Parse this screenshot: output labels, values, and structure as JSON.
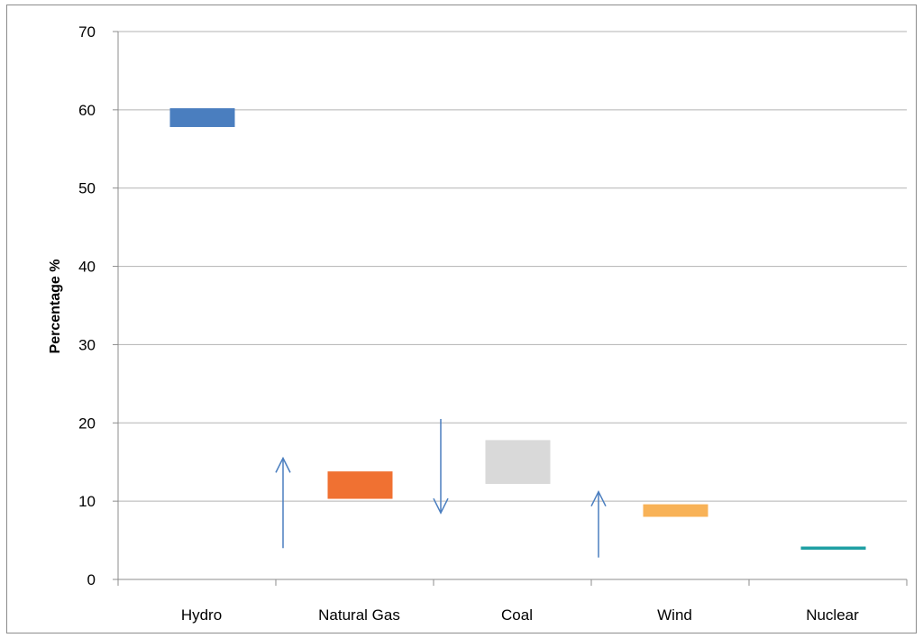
{
  "chart_data": {
    "type": "floating-bar",
    "title": "",
    "xlabel": "",
    "ylabel": "Percentage %",
    "ylim": [
      0,
      70
    ],
    "yticks": [
      "0",
      "10",
      "20",
      "30",
      "40",
      "50",
      "60",
      "70"
    ],
    "grid": true,
    "legend": "none",
    "categories": [
      "Hydro",
      "Natural Gas",
      "Coal",
      "Wind",
      "Nuclear"
    ],
    "ranges": [
      {
        "category": "Hydro",
        "low": 57.8,
        "high": 60.2,
        "color": "#4a7ebf"
      },
      {
        "category": "Natural Gas",
        "low": 10.3,
        "high": 13.8,
        "color": "#f07132"
      },
      {
        "category": "Coal",
        "low": 12.2,
        "high": 17.8,
        "color": "#d9d9d9"
      },
      {
        "category": "Wind",
        "low": 8.0,
        "high": 9.6,
        "color": "#f8b257"
      },
      {
        "category": "Nuclear",
        "low": 3.8,
        "high": 4.2,
        "color": "#1f9fa3"
      }
    ],
    "trend_arrows": [
      {
        "category": "Natural Gas",
        "direction": "up",
        "from": 4.0,
        "to": 15.5
      },
      {
        "category": "Coal",
        "direction": "down",
        "from": 20.5,
        "to": 8.5
      },
      {
        "category": "Wind",
        "direction": "up",
        "from": 2.8,
        "to": 11.2
      }
    ],
    "arrow_color": "#4a7ebf"
  }
}
